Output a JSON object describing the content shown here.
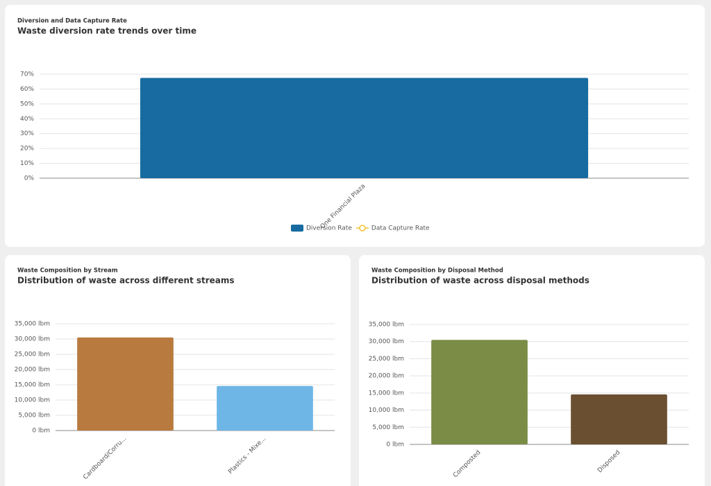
{
  "chart_data": [
    {
      "type": "bar",
      "title": "Diversion and Data Capture Rate",
      "subtitle": "Waste diversion rate trends over time",
      "categories": [
        "One Financial Plaza"
      ],
      "series": [
        {
          "name": "Diversion Rate",
          "color": "#176ba0",
          "values": [
            67.5
          ]
        },
        {
          "name": "Data Capture Rate",
          "color": "#f2c12e",
          "type": "line",
          "values": [
            null
          ]
        }
      ],
      "ylim": [
        0,
        70
      ],
      "yticks": [
        {
          "value": 0,
          "label": "0%"
        },
        {
          "value": 10,
          "label": "10%"
        },
        {
          "value": 20,
          "label": "20%"
        },
        {
          "value": 30,
          "label": "30%"
        },
        {
          "value": 40,
          "label": "40%"
        },
        {
          "value": 50,
          "label": "50%"
        },
        {
          "value": 60,
          "label": "60%"
        },
        {
          "value": 70,
          "label": "70%"
        }
      ],
      "grid": true,
      "legend": "bottom"
    },
    {
      "type": "bar",
      "title": "Waste Composition by Stream",
      "subtitle": "Distribution of waste across different streams",
      "categories": [
        "Cardboard/Corru...",
        "Plastics - Mixe..."
      ],
      "values": [
        30500,
        14600
      ],
      "colors": [
        "#b87a3e",
        "#6db6e6"
      ],
      "ylim": [
        0,
        35000
      ],
      "yticks": [
        {
          "value": 0,
          "label": "0 lbm"
        },
        {
          "value": 5000,
          "label": "5,000 lbm"
        },
        {
          "value": 10000,
          "label": "10,000 lbm"
        },
        {
          "value": 15000,
          "label": "15,000 lbm"
        },
        {
          "value": 20000,
          "label": "20,000 lbm"
        },
        {
          "value": 25000,
          "label": "25,000 lbm"
        },
        {
          "value": 30000,
          "label": "30,000 lbm"
        },
        {
          "value": 35000,
          "label": "35,000 lbm"
        }
      ],
      "grid": true
    },
    {
      "type": "bar",
      "title": "Waste Composition by Disposal Method",
      "subtitle": "Distribution of waste across disposal methods",
      "categories": [
        "Composted",
        "Disposed"
      ],
      "values": [
        30500,
        14600
      ],
      "colors": [
        "#7a8c46",
        "#6b4f31"
      ],
      "ylim": [
        0,
        35000
      ],
      "yticks": [
        {
          "value": 0,
          "label": "0 lbm"
        },
        {
          "value": 5000,
          "label": "5,000 lbm"
        },
        {
          "value": 10000,
          "label": "10,000 lbm"
        },
        {
          "value": 15000,
          "label": "15,000 lbm"
        },
        {
          "value": 20000,
          "label": "20,000 lbm"
        },
        {
          "value": 25000,
          "label": "25,000 lbm"
        },
        {
          "value": 30000,
          "label": "30,000 lbm"
        },
        {
          "value": 35000,
          "label": "35,000 lbm"
        }
      ],
      "grid": true
    }
  ]
}
